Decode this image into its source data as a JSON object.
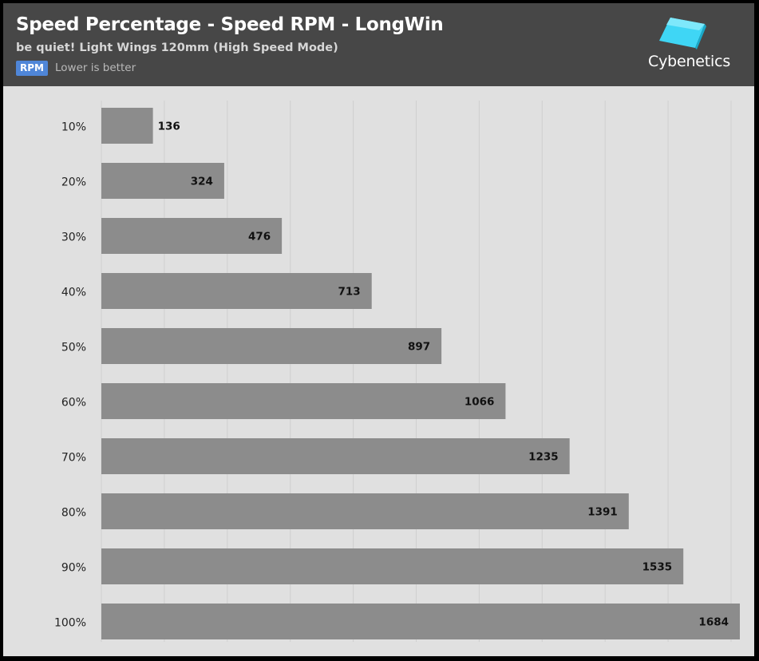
{
  "header": {
    "title": "Speed Percentage - Speed RPM - LongWin",
    "subtitle": "be quiet! Light Wings 120mm (High Speed Mode)",
    "badge": "RPM",
    "note": "Lower is better",
    "logo_text": "Cybenetics"
  },
  "colors": {
    "header_bg": "#474747",
    "plot_bg": "#e0e0e0",
    "bar": "#8c8c8c",
    "grid": "#cfcfcf",
    "badge": "#4f86d8",
    "logo_cyan": "#3fd6f5"
  },
  "chart_data": {
    "type": "bar",
    "orientation": "horizontal",
    "title": "Speed Percentage - Speed RPM - LongWin",
    "subtitle": "be quiet! Light Wings 120mm (High Speed Mode)",
    "unit": "RPM",
    "categories": [
      "10%",
      "20%",
      "30%",
      "40%",
      "50%",
      "60%",
      "70%",
      "80%",
      "90%",
      "100%"
    ],
    "values": [
      136,
      324,
      476,
      713,
      897,
      1066,
      1235,
      1391,
      1535,
      1684
    ],
    "xlim": [
      0,
      1684
    ],
    "grid": true,
    "data_labels": true
  }
}
